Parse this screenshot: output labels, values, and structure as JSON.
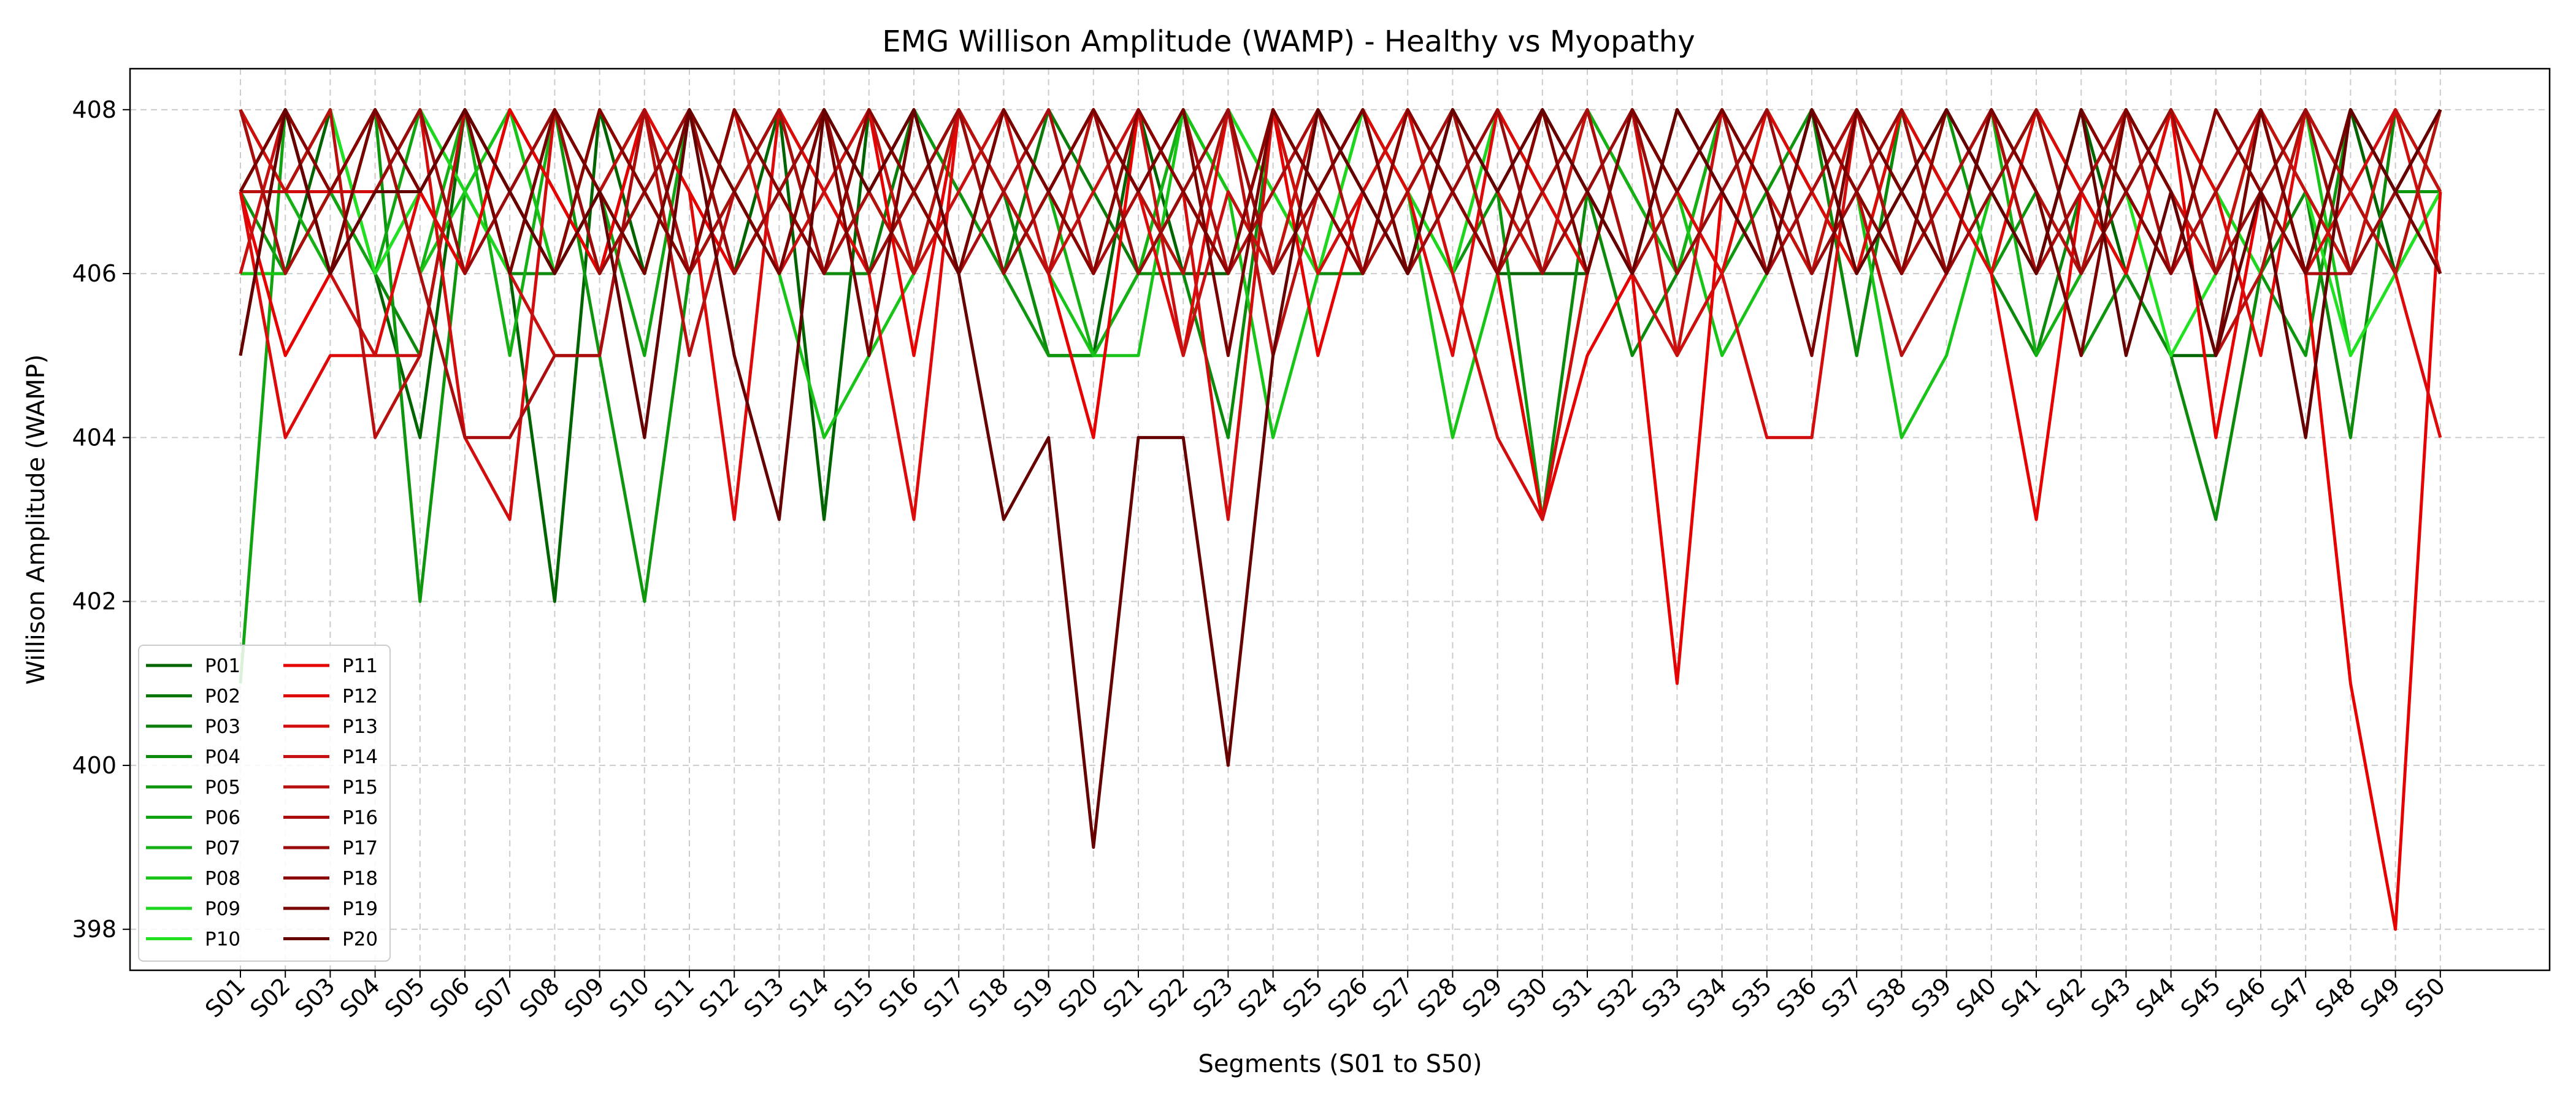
{
  "chart_data": {
    "type": "line",
    "title": "EMG Willison Amplitude (WAMP) - Healthy vs Myopathy",
    "xlabel": "Segments (S01 to S50)",
    "ylabel": "Willison Amplitude (WAMP)",
    "ylim": [
      397.5,
      408.5
    ],
    "yticks": [
      398,
      400,
      402,
      404,
      406,
      408
    ],
    "grid": true,
    "legend_position": "lower-left",
    "x": [
      "S01",
      "S02",
      "S03",
      "S04",
      "S05",
      "S06",
      "S07",
      "S08",
      "S09",
      "S10",
      "S11",
      "S12",
      "S13",
      "S14",
      "S15",
      "S16",
      "S17",
      "S18",
      "S19",
      "S20",
      "S21",
      "S22",
      "S23",
      "S24",
      "S25",
      "S26",
      "S27",
      "S28",
      "S29",
      "S30",
      "S31",
      "S32",
      "S33",
      "S34",
      "S35",
      "S36",
      "S37",
      "S38",
      "S39",
      "S40",
      "S41",
      "S42",
      "S43",
      "S44",
      "S45",
      "S46",
      "S47",
      "S48",
      "S49",
      "S50"
    ],
    "series": [
      {
        "name": "P01",
        "color": "#006400",
        "values": [
          408,
          406,
          408,
          406,
          404,
          408,
          406,
          402,
          408,
          406,
          408,
          406,
          408,
          403,
          408,
          406,
          408,
          407,
          405,
          405,
          408,
          406,
          406,
          408,
          407,
          408,
          406,
          408,
          406,
          406,
          406,
          408,
          406,
          408,
          406,
          408,
          405,
          408,
          406,
          408,
          406,
          408,
          406,
          405,
          405,
          408,
          406,
          408,
          406,
          407
        ]
      },
      {
        "name": "P02",
        "color": "#087508",
        "values": [
          407,
          408,
          406,
          408,
          407,
          406,
          408,
          407,
          406,
          408,
          406,
          408,
          407,
          406,
          408,
          407,
          406,
          408,
          407,
          406,
          408,
          407,
          406,
          408,
          407,
          406,
          408,
          407,
          406,
          408,
          407,
          406,
          408,
          407,
          406,
          408,
          407,
          406,
          408,
          407,
          406,
          408,
          407,
          406,
          408,
          407,
          406,
          408,
          407,
          406
        ]
      },
      {
        "name": "P03",
        "color": "#0a7d0a",
        "values": [
          408,
          407,
          408,
          406,
          407,
          408,
          407,
          406,
          408,
          407,
          406,
          407,
          408,
          407,
          406,
          408,
          407,
          406,
          408,
          407,
          406,
          408,
          407,
          406,
          408,
          407,
          406,
          408,
          407,
          406,
          408,
          407,
          406,
          408,
          407,
          406,
          408,
          407,
          406,
          408,
          407,
          406,
          408,
          407,
          406,
          408,
          407,
          406,
          408,
          407
        ]
      },
      {
        "name": "P04",
        "color": "#0c8a0c",
        "values": [
          406,
          406,
          407,
          406,
          405,
          408,
          406,
          406,
          407,
          408,
          406,
          407,
          408,
          406,
          406,
          407,
          408,
          407,
          405,
          405,
          406,
          406,
          404,
          408,
          406,
          406,
          407,
          408,
          406,
          403,
          407,
          405,
          406,
          407,
          406,
          408,
          405,
          408,
          407,
          406,
          405,
          407,
          406,
          405,
          403,
          406,
          407,
          404,
          408,
          407
        ]
      },
      {
        "name": "P05",
        "color": "#0f960f",
        "values": [
          407,
          406,
          407,
          408,
          402,
          407,
          406,
          408,
          405,
          402,
          406,
          407,
          408,
          406,
          407,
          408,
          407,
          406,
          405,
          405,
          406,
          407,
          406,
          408,
          406,
          407,
          408,
          406,
          407,
          403,
          406,
          408,
          405,
          406,
          407,
          408,
          406,
          407,
          408,
          406,
          407,
          405,
          406,
          408,
          407,
          406,
          405,
          408,
          407,
          407
        ]
      },
      {
        "name": "P06",
        "color": "#12a312",
        "values": [
          401,
          408,
          407,
          406,
          408,
          407,
          408,
          406,
          407,
          405,
          408,
          407,
          406,
          408,
          407,
          406,
          408,
          407,
          406,
          408,
          407,
          406,
          408,
          407,
          406,
          408,
          407,
          406,
          408,
          407,
          406,
          408,
          407,
          406,
          408,
          407,
          406,
          408,
          407,
          406,
          408,
          407,
          406,
          408,
          407,
          406,
          408,
          407,
          406,
          408
        ]
      },
      {
        "name": "P07",
        "color": "#14b014",
        "values": [
          407,
          407,
          406,
          408,
          406,
          408,
          405,
          408,
          406,
          407,
          408,
          406,
          407,
          408,
          406,
          407,
          408,
          406,
          407,
          405,
          406,
          408,
          407,
          406,
          408,
          407,
          406,
          408,
          407,
          406,
          408,
          407,
          406,
          408,
          407,
          406,
          408,
          407,
          406,
          408,
          405,
          406,
          408,
          407,
          406,
          408,
          407,
          406,
          408,
          407
        ]
      },
      {
        "name": "P08",
        "color": "#19c419",
        "values": [
          406,
          406,
          407,
          408,
          406,
          407,
          408,
          406,
          407,
          406,
          408,
          407,
          406,
          404,
          405,
          406,
          408,
          407,
          406,
          405,
          405,
          408,
          407,
          404,
          406,
          408,
          407,
          404,
          406,
          407,
          408,
          406,
          407,
          405,
          406,
          408,
          407,
          404,
          405,
          407,
          408,
          406,
          407,
          408,
          406,
          407,
          408,
          405,
          406,
          407
        ]
      },
      {
        "name": "P09",
        "color": "#1ed61e",
        "values": [
          407,
          408,
          406,
          407,
          408,
          407,
          406,
          408,
          407,
          406,
          408,
          407,
          406,
          408,
          407,
          406,
          408,
          407,
          406,
          408,
          407,
          406,
          408,
          407,
          406,
          408,
          407,
          406,
          408,
          407,
          406,
          408,
          407,
          406,
          408,
          407,
          406,
          408,
          407,
          406,
          408,
          407,
          406,
          408,
          407,
          406,
          408,
          407,
          406,
          408
        ]
      },
      {
        "name": "P10",
        "color": "#22e022",
        "values": [
          408,
          407,
          408,
          406,
          407,
          408,
          407,
          406,
          408,
          407,
          406,
          408,
          407,
          406,
          408,
          407,
          406,
          408,
          407,
          406,
          408,
          407,
          406,
          408,
          407,
          406,
          408,
          407,
          406,
          408,
          407,
          406,
          408,
          407,
          406,
          408,
          407,
          406,
          408,
          407,
          406,
          408,
          407,
          405,
          406,
          408,
          407,
          405,
          406,
          407
        ]
      },
      {
        "name": "P11",
        "color": "#e60000",
        "values": [
          407,
          405,
          406,
          407,
          407,
          406,
          408,
          407,
          406,
          408,
          407,
          406,
          407,
          406,
          408,
          405,
          408,
          407,
          406,
          404,
          408,
          407,
          406,
          408,
          405,
          407,
          406,
          407,
          406,
          403,
          405,
          406,
          401,
          407,
          406,
          407,
          408,
          406,
          407,
          406,
          403,
          407,
          406,
          408,
          404,
          407,
          406,
          401,
          398,
          407
        ]
      },
      {
        "name": "P12",
        "color": "#de0909",
        "values": [
          407,
          404,
          405,
          405,
          407,
          408,
          407,
          408,
          407,
          408,
          407,
          403,
          408,
          407,
          406,
          403,
          408,
          407,
          406,
          408,
          407,
          405,
          408,
          406,
          407,
          408,
          407,
          405,
          408,
          407,
          406,
          408,
          407,
          406,
          408,
          407,
          406,
          408,
          407,
          406,
          408,
          407,
          406,
          408,
          407,
          405,
          408,
          407,
          406,
          404
        ]
      },
      {
        "name": "P13",
        "color": "#d10d0d",
        "values": [
          408,
          407,
          407,
          407,
          408,
          404,
          403,
          408,
          406,
          407,
          408,
          406,
          407,
          408,
          406,
          407,
          408,
          406,
          407,
          408,
          406,
          407,
          403,
          408,
          406,
          407,
          408,
          406,
          404,
          403,
          406,
          408,
          405,
          406,
          404,
          404,
          408,
          406,
          407,
          408,
          406,
          407,
          408,
          406,
          407,
          408,
          406,
          407,
          408,
          406
        ]
      },
      {
        "name": "P14",
        "color": "#c71010",
        "values": [
          406,
          408,
          406,
          405,
          405,
          408,
          406,
          405,
          405,
          408,
          406,
          408,
          406,
          407,
          408,
          406,
          407,
          408,
          406,
          407,
          408,
          405,
          407,
          406,
          408,
          407,
          406,
          408,
          407,
          406,
          408,
          406,
          405,
          408,
          407,
          406,
          408,
          407,
          406,
          408,
          407,
          406,
          408,
          407,
          406,
          408,
          407,
          406,
          408,
          407
        ]
      },
      {
        "name": "P15",
        "color": "#b80f0f",
        "values": [
          407,
          407,
          408,
          404,
          405,
          408,
          407,
          406,
          407,
          408,
          405,
          407,
          406,
          408,
          407,
          406,
          408,
          407,
          406,
          408,
          407,
          406,
          408,
          405,
          407,
          406,
          408,
          407,
          406,
          408,
          407,
          406,
          408,
          407,
          406,
          408,
          407,
          405,
          406,
          408,
          407,
          406,
          408,
          407,
          405,
          406,
          408,
          407,
          406,
          408
        ]
      },
      {
        "name": "P16",
        "color": "#aa0d0d",
        "values": [
          408,
          406,
          407,
          408,
          406,
          404,
          404,
          405,
          405,
          408,
          406,
          407,
          408,
          406,
          407,
          408,
          406,
          407,
          408,
          406,
          407,
          408,
          406,
          407,
          408,
          406,
          407,
          408,
          406,
          407,
          408,
          406,
          407,
          408,
          406,
          407,
          408,
          406,
          407,
          408,
          406,
          407,
          408,
          406,
          407,
          408,
          406,
          406,
          407,
          408
        ]
      },
      {
        "name": "P17",
        "color": "#9a0b0b",
        "values": [
          407,
          408,
          406,
          407,
          408,
          406,
          407,
          408,
          406,
          407,
          408,
          406,
          407,
          408,
          406,
          407,
          408,
          406,
          407,
          408,
          406,
          407,
          408,
          406,
          407,
          408,
          406,
          407,
          408,
          406,
          407,
          408,
          406,
          407,
          408,
          406,
          407,
          408,
          406,
          407,
          408,
          406,
          407,
          408,
          406,
          407,
          408,
          406,
          407,
          408
        ]
      },
      {
        "name": "P18",
        "color": "#8b0000",
        "values": [
          405,
          408,
          407,
          408,
          407,
          408,
          407,
          406,
          408,
          407,
          406,
          408,
          407,
          406,
          408,
          407,
          406,
          408,
          407,
          406,
          408,
          407,
          406,
          408,
          407,
          406,
          408,
          407,
          406,
          408,
          407,
          406,
          408,
          407,
          406,
          408,
          407,
          406,
          408,
          407,
          406,
          408,
          407,
          406,
          408,
          407,
          406,
          408,
          407,
          408
        ]
      },
      {
        "name": "P19",
        "color": "#7a0000",
        "values": [
          407,
          408,
          406,
          408,
          407,
          408,
          406,
          408,
          407,
          406,
          408,
          407,
          406,
          408,
          405,
          408,
          406,
          408,
          407,
          408,
          407,
          408,
          405,
          408,
          407,
          408,
          406,
          408,
          407,
          408,
          406,
          408,
          407,
          408,
          407,
          405,
          408,
          407,
          406,
          408,
          407,
          405,
          408,
          407,
          405,
          408,
          406,
          408,
          407,
          406
        ]
      },
      {
        "name": "P20",
        "color": "#660000",
        "values": [
          405,
          408,
          406,
          407,
          407,
          408,
          407,
          406,
          407,
          404,
          408,
          405,
          403,
          408,
          407,
          408,
          406,
          403,
          404,
          399,
          404,
          404,
          400,
          405,
          408,
          407,
          406,
          408,
          407,
          408,
          407,
          406,
          408,
          407,
          406,
          408,
          406,
          407,
          408,
          407,
          406,
          408,
          405,
          407,
          405,
          407,
          404,
          408,
          407,
          408
        ]
      }
    ]
  }
}
